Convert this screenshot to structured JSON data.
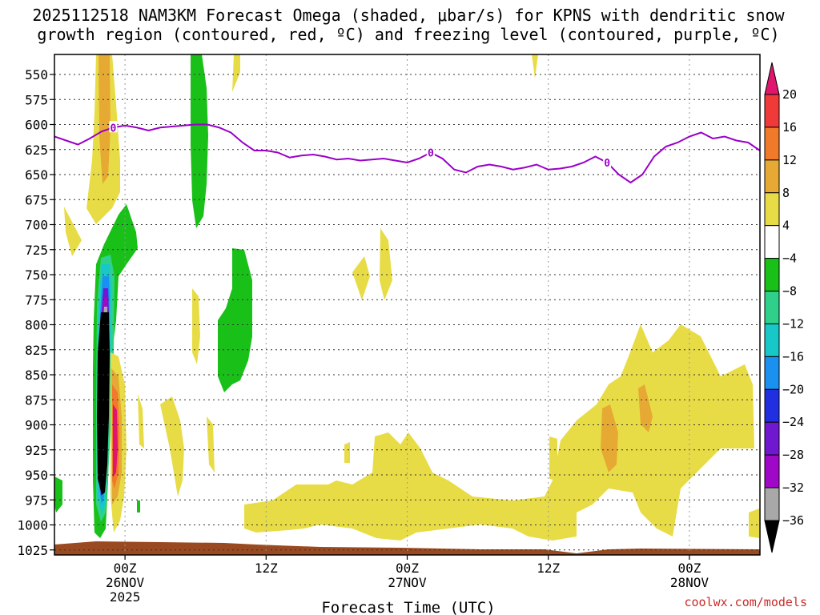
{
  "chart_data": {
    "type": "contour-heatmap",
    "title_line1": "2025112518 NAM3KM Forecast Omega (shaded, μbar/s) for KPNS with dendritic snow",
    "title_line2": "growth region (contoured, red, ºC) and freezing level (contoured, purple, ºC)",
    "xlabel": "Forecast Time (UTC)",
    "credit": "coolwx.com/models",
    "x_ticks": [
      {
        "hour": 6,
        "label": [
          "00Z",
          "26NOV",
          "2025"
        ]
      },
      {
        "hour": 18,
        "label": [
          "12Z"
        ]
      },
      {
        "hour": 30,
        "label": [
          "00Z",
          "27NOV"
        ]
      },
      {
        "hour": 42,
        "label": [
          "12Z"
        ]
      },
      {
        "hour": 54,
        "label": [
          "00Z",
          "28NOV"
        ]
      }
    ],
    "xlim": [
      0,
      60
    ],
    "y_ticks": [
      550,
      575,
      600,
      625,
      650,
      675,
      700,
      725,
      750,
      775,
      800,
      825,
      850,
      875,
      900,
      925,
      950,
      975,
      1000,
      1025
    ],
    "ylim_hpa": [
      1030,
      530
    ],
    "colorbar": {
      "labels": [
        "20",
        "16",
        "12",
        "8",
        "4",
        "−4",
        "−8",
        "−12",
        "−16",
        "−20",
        "−24",
        "−28",
        "−32",
        "−36"
      ],
      "colors": [
        "#e0156e",
        "#f03a3a",
        "#f07a2a",
        "#e6aa34",
        "#e8dc46",
        "#ffffff",
        "#18c018",
        "#2ed08a",
        "#18c8c8",
        "#1a90f0",
        "#2030e0",
        "#7018d0",
        "#a008c8",
        "#a8a8a8",
        "#000000"
      ]
    },
    "freezing_level": {
      "label": "0",
      "color": "#9a00c8",
      "points": [
        [
          0,
          612
        ],
        [
          1,
          616
        ],
        [
          2,
          620
        ],
        [
          3,
          614
        ],
        [
          4,
          607
        ],
        [
          5,
          603
        ],
        [
          6,
          601
        ],
        [
          7,
          603
        ],
        [
          8,
          606
        ],
        [
          9,
          603
        ],
        [
          10,
          602
        ],
        [
          11,
          601
        ],
        [
          12,
          600
        ],
        [
          13,
          600
        ],
        [
          14,
          603
        ],
        [
          15,
          608
        ],
        [
          16,
          618
        ],
        [
          17,
          626
        ],
        [
          18,
          626
        ],
        [
          19,
          628
        ],
        [
          20,
          633
        ],
        [
          21,
          631
        ],
        [
          22,
          630
        ],
        [
          23,
          632
        ],
        [
          24,
          635
        ],
        [
          25,
          634
        ],
        [
          26,
          636
        ],
        [
          27,
          635
        ],
        [
          28,
          634
        ],
        [
          29,
          636
        ],
        [
          30,
          638
        ],
        [
          31,
          634
        ],
        [
          32,
          628
        ],
        [
          33,
          634
        ],
        [
          34,
          645
        ],
        [
          35,
          648
        ],
        [
          36,
          642
        ],
        [
          37,
          640
        ],
        [
          38,
          642
        ],
        [
          39,
          645
        ],
        [
          40,
          643
        ],
        [
          41,
          640
        ],
        [
          42,
          645
        ],
        [
          43,
          644
        ],
        [
          44,
          642
        ],
        [
          45,
          638
        ],
        [
          46,
          632
        ],
        [
          47,
          638
        ],
        [
          48,
          650
        ],
        [
          49,
          658
        ],
        [
          50,
          650
        ],
        [
          51,
          632
        ],
        [
          52,
          622
        ],
        [
          53,
          618
        ],
        [
          54,
          612
        ],
        [
          55,
          608
        ],
        [
          56,
          614
        ],
        [
          57,
          612
        ],
        [
          58,
          616
        ],
        [
          59,
          618
        ],
        [
          60,
          626
        ]
      ]
    },
    "omega_regions_description": "Strong upward motion (< -36 ubar/s) near 00Z 26NOV between 725 and 1000 hPa; weak positive omega (4-8) broad lower-level region after 00Z 27NOV",
    "terrain_color": "#9a4a20"
  }
}
